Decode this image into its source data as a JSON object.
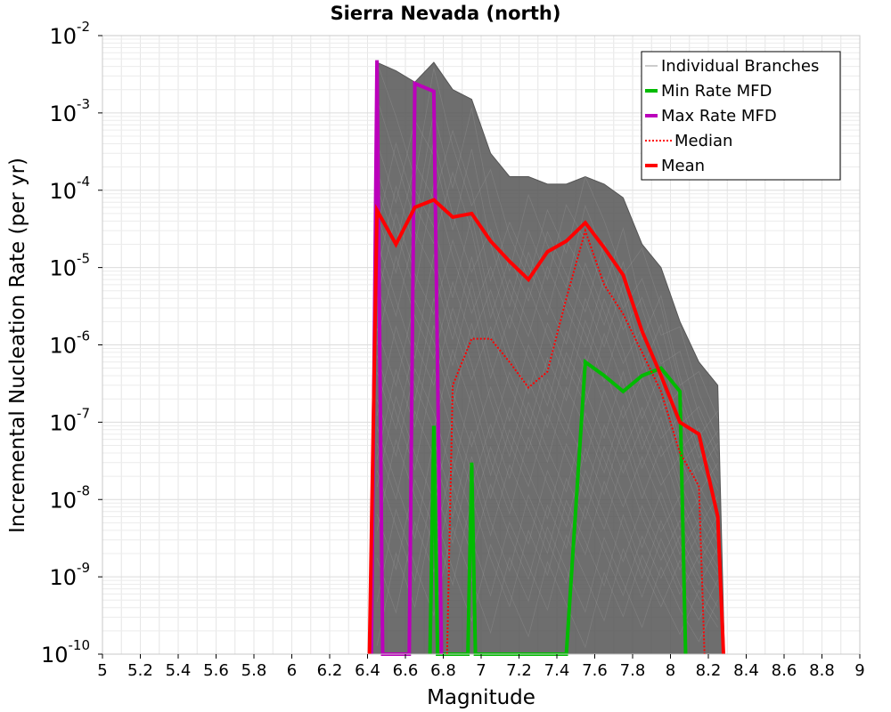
{
  "chart_data": {
    "type": "line",
    "title": "Sierra Nevada (north)",
    "xlabel": "Magnitude",
    "ylabel": "Incremental Nucleation Rate (per yr)",
    "xlim": [
      5,
      9
    ],
    "ylim": [
      1e-10,
      0.01
    ],
    "yscale": "log",
    "grid": true,
    "legend_position": "top-right",
    "x_ticks": [
      "5",
      "5.2",
      "5.4",
      "5.6",
      "5.8",
      "6",
      "6.2",
      "6.4",
      "6.6",
      "6.8",
      "7",
      "7.2",
      "7.4",
      "7.6",
      "7.8",
      "8",
      "8.2",
      "8.4",
      "8.6",
      "8.8",
      "9"
    ],
    "y_ticks": [
      {
        "base": "10",
        "exp": "-10"
      },
      {
        "base": "10",
        "exp": "-9"
      },
      {
        "base": "10",
        "exp": "-8"
      },
      {
        "base": "10",
        "exp": "-7"
      },
      {
        "base": "10",
        "exp": "-6"
      },
      {
        "base": "10",
        "exp": "-5"
      },
      {
        "base": "10",
        "exp": "-4"
      },
      {
        "base": "10",
        "exp": "-3"
      },
      {
        "base": "10",
        "exp": "-2"
      }
    ],
    "series": [
      {
        "name": "Individual Branches",
        "color": "#555555",
        "style": "band",
        "x": [
          6.45,
          6.55,
          6.65,
          6.75,
          6.85,
          6.95,
          7.05,
          7.15,
          7.25,
          7.35,
          7.45,
          7.55,
          7.65,
          7.75,
          7.85,
          7.95,
          8.05,
          8.15,
          8.25
        ],
        "upper": [
          0.0045,
          0.0035,
          0.0025,
          0.0045,
          0.002,
          0.0015,
          0.0003,
          0.00015,
          0.00015,
          0.00012,
          0.00012,
          0.00015,
          0.00012,
          8e-05,
          2e-05,
          1e-05,
          2e-06,
          6e-07,
          3e-07
        ],
        "lower": [
          1e-10,
          1e-10,
          1e-10,
          1e-10,
          1e-10,
          1e-10,
          1e-10,
          1e-10,
          1e-10,
          1e-10,
          1e-10,
          1e-10,
          1e-10,
          1e-10,
          1e-10,
          1e-10,
          1e-10,
          1e-10,
          1e-10
        ]
      },
      {
        "name": "Min Rate MFD",
        "color": "#00bb00",
        "style": "solid",
        "x": [
          6.73,
          6.75,
          6.77,
          6.93,
          6.95,
          6.97,
          7.45,
          7.55,
          7.65,
          7.75,
          7.85,
          7.95,
          8.05,
          8.08
        ],
        "y": [
          1e-10,
          9e-08,
          1e-10,
          1e-10,
          3e-08,
          1e-10,
          1e-10,
          6e-07,
          4e-07,
          2.5e-07,
          4e-07,
          5e-07,
          2.5e-07,
          1e-10
        ]
      },
      {
        "name": "Max Rate MFD",
        "color": "#bb00bb",
        "style": "solid",
        "x": [
          6.42,
          6.45,
          6.48,
          6.62,
          6.65,
          6.75,
          6.79
        ],
        "y": [
          1e-10,
          0.0048,
          1e-10,
          1e-10,
          0.0024,
          0.0019,
          1e-10
        ]
      },
      {
        "name": "Median",
        "color": "#ff0000",
        "style": "dotted",
        "x": [
          6.82,
          6.85,
          6.95,
          7.05,
          7.15,
          7.25,
          7.35,
          7.45,
          7.55,
          7.65,
          7.75,
          7.85,
          7.95,
          8.05,
          8.15,
          8.18
        ],
        "y": [
          1e-10,
          3e-07,
          1.2e-06,
          1.2e-06,
          6e-07,
          2.8e-07,
          4.5e-07,
          4e-06,
          3e-05,
          6e-06,
          2.5e-06,
          8e-07,
          2.5e-07,
          4e-08,
          1.5e-08,
          1e-10
        ]
      },
      {
        "name": "Mean",
        "color": "#ff0000",
        "style": "solid",
        "x": [
          6.41,
          6.45,
          6.55,
          6.65,
          6.75,
          6.85,
          6.95,
          7.05,
          7.15,
          7.25,
          7.35,
          7.45,
          7.55,
          7.65,
          7.75,
          7.85,
          7.95,
          8.05,
          8.15,
          8.25,
          8.28
        ],
        "y": [
          1e-10,
          5.5e-05,
          2e-05,
          6e-05,
          7.5e-05,
          4.5e-05,
          5e-05,
          2.2e-05,
          1.2e-05,
          7e-06,
          1.6e-05,
          2.2e-05,
          3.8e-05,
          1.8e-05,
          8e-06,
          1.5e-06,
          4e-07,
          1e-07,
          7e-08,
          6e-09,
          1e-10
        ]
      }
    ]
  }
}
